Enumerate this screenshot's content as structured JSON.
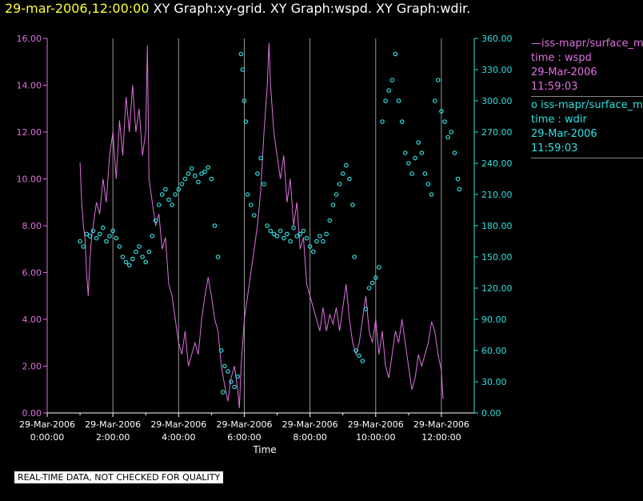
{
  "header": {
    "datetime": "29-mar-2006,12:00:00",
    "title": "XY Graph:xy-grid.  XY Graph:wspd.  XY Graph:wdir."
  },
  "legend": {
    "wspd": {
      "line1": "iss-mapr/surface_m",
      "line2": "time : wspd",
      "line3": "29-Mar-2006",
      "line4": "11:59:03",
      "color": "#e070e0"
    },
    "wdir": {
      "line1": "iss-mapr/surface_m",
      "line2": "time : wdir",
      "line3": "29-Mar-2006",
      "line4": "11:59:03",
      "color": "#30e0e0"
    }
  },
  "footer": {
    "quality_note": "REAL-TIME DATA, NOT CHECKED FOR QUALITY"
  },
  "chart_data": {
    "type": "line",
    "xlabel": "Time",
    "x_range_hours": [
      -1,
      12
    ],
    "x_ticks": [
      {
        "hour": -1,
        "date": "29-Mar-2006",
        "time": "0:00:00"
      },
      {
        "hour": 1,
        "date": "29-Mar-2006",
        "time": "2:00:00"
      },
      {
        "hour": 3,
        "date": "29-Mar-2006",
        "time": "4:00:00"
      },
      {
        "hour": 5,
        "date": "29-Mar-2006",
        "time": "6:00:00"
      },
      {
        "hour": 7,
        "date": "29-Mar-2006",
        "time": "8:00:00"
      },
      {
        "hour": 9,
        "date": "29-Mar-2006",
        "time": "10:00:00"
      },
      {
        "hour": 11,
        "date": "29-Mar-2006",
        "time": "12:00:00"
      }
    ],
    "gridlines_hours": [
      1,
      3,
      5,
      7,
      9,
      11
    ],
    "y_left": {
      "label": "wspd",
      "range": [
        0,
        16
      ],
      "color": "#e070e0",
      "ticks": [
        "0.00",
        "2.00",
        "4.00",
        "6.00",
        "8.00",
        "10.00",
        "12.00",
        "14.00",
        "16.00"
      ]
    },
    "y_right": {
      "label": "wdir",
      "range": [
        0,
        360
      ],
      "color": "#30e0e0",
      "ticks": [
        "0.00",
        "30.00",
        "60.00",
        "90.00",
        "120.00",
        "150.00",
        "180.00",
        "210.00",
        "240.00",
        "270.00",
        "300.00",
        "330.00",
        "360.00"
      ]
    },
    "series": [
      {
        "name": "wspd",
        "style": "line",
        "axis": "left",
        "points": [
          [
            0,
            10.7
          ],
          [
            0.05,
            9
          ],
          [
            0.1,
            8
          ],
          [
            0.15,
            7.5
          ],
          [
            0.2,
            6
          ],
          [
            0.25,
            5
          ],
          [
            0.3,
            6.5
          ],
          [
            0.35,
            7.5
          ],
          [
            0.4,
            8
          ],
          [
            0.5,
            9
          ],
          [
            0.6,
            8.5
          ],
          [
            0.7,
            10
          ],
          [
            0.8,
            9
          ],
          [
            0.9,
            11
          ],
          [
            1.0,
            12
          ],
          [
            1.1,
            10
          ],
          [
            1.2,
            12.5
          ],
          [
            1.3,
            11
          ],
          [
            1.4,
            13.5
          ],
          [
            1.5,
            12
          ],
          [
            1.6,
            14
          ],
          [
            1.7,
            12
          ],
          [
            1.8,
            13
          ],
          [
            1.9,
            11
          ],
          [
            2.0,
            12
          ],
          [
            2.05,
            15.7
          ],
          [
            2.1,
            10
          ],
          [
            2.2,
            9
          ],
          [
            2.3,
            8
          ],
          [
            2.4,
            8.5
          ],
          [
            2.5,
            7
          ],
          [
            2.6,
            7.5
          ],
          [
            2.7,
            5.5
          ],
          [
            2.8,
            5
          ],
          [
            2.9,
            4
          ],
          [
            3.0,
            3
          ],
          [
            3.1,
            2.5
          ],
          [
            3.2,
            3.5
          ],
          [
            3.3,
            2
          ],
          [
            3.4,
            2.5
          ],
          [
            3.5,
            3
          ],
          [
            3.6,
            2.5
          ],
          [
            3.7,
            4
          ],
          [
            3.8,
            5
          ],
          [
            3.9,
            5.8
          ],
          [
            4.0,
            5
          ],
          [
            4.1,
            4
          ],
          [
            4.2,
            3.5
          ],
          [
            4.3,
            2
          ],
          [
            4.4,
            1.2
          ],
          [
            4.5,
            0.5
          ],
          [
            4.6,
            1.5
          ],
          [
            4.7,
            2
          ],
          [
            4.8,
            1
          ],
          [
            4.85,
            0.2
          ],
          [
            4.9,
            2
          ],
          [
            5.0,
            4
          ],
          [
            5.1,
            5
          ],
          [
            5.2,
            6
          ],
          [
            5.3,
            7
          ],
          [
            5.4,
            8
          ],
          [
            5.5,
            9.5
          ],
          [
            5.6,
            12
          ],
          [
            5.7,
            14
          ],
          [
            5.75,
            15.8
          ],
          [
            5.8,
            14
          ],
          [
            5.9,
            12
          ],
          [
            6.0,
            11
          ],
          [
            6.1,
            10
          ],
          [
            6.2,
            11
          ],
          [
            6.3,
            9
          ],
          [
            6.4,
            10
          ],
          [
            6.5,
            8
          ],
          [
            6.6,
            9
          ],
          [
            6.7,
            7
          ],
          [
            6.8,
            7.5
          ],
          [
            6.9,
            5.5
          ],
          [
            7.0,
            5
          ],
          [
            7.1,
            4.5
          ],
          [
            7.2,
            4
          ],
          [
            7.3,
            3.5
          ],
          [
            7.4,
            4.5
          ],
          [
            7.5,
            3.5
          ],
          [
            7.6,
            4.2
          ],
          [
            7.7,
            3.8
          ],
          [
            7.8,
            4.5
          ],
          [
            7.9,
            3.5
          ],
          [
            8.0,
            4.5
          ],
          [
            8.1,
            5.5
          ],
          [
            8.2,
            4
          ],
          [
            8.3,
            3
          ],
          [
            8.4,
            2.5
          ],
          [
            8.5,
            3
          ],
          [
            8.6,
            4
          ],
          [
            8.7,
            5
          ],
          [
            8.8,
            3.5
          ],
          [
            8.9,
            3
          ],
          [
            9.0,
            4
          ],
          [
            9.1,
            2.5
          ],
          [
            9.2,
            3.5
          ],
          [
            9.3,
            2
          ],
          [
            9.4,
            1.5
          ],
          [
            9.5,
            2.5
          ],
          [
            9.6,
            3.5
          ],
          [
            9.7,
            3
          ],
          [
            9.8,
            4
          ],
          [
            9.9,
            3
          ],
          [
            10.0,
            2
          ],
          [
            10.1,
            1
          ],
          [
            10.2,
            1.5
          ],
          [
            10.3,
            2.5
          ],
          [
            10.4,
            2
          ],
          [
            10.5,
            2.5
          ],
          [
            10.6,
            3
          ],
          [
            10.7,
            3.9
          ],
          [
            10.8,
            3.5
          ],
          [
            10.9,
            2.5
          ],
          [
            11.0,
            1.8
          ],
          [
            11.05,
            0.6
          ]
        ]
      },
      {
        "name": "wdir",
        "style": "scatter",
        "axis": "right",
        "points": [
          [
            0,
            165
          ],
          [
            0.1,
            160
          ],
          [
            0.2,
            172
          ],
          [
            0.3,
            170
          ],
          [
            0.4,
            175
          ],
          [
            0.5,
            168
          ],
          [
            0.6,
            172
          ],
          [
            0.7,
            178
          ],
          [
            0.8,
            165
          ],
          [
            0.9,
            170
          ],
          [
            1.0,
            175
          ],
          [
            1.1,
            168
          ],
          [
            1.2,
            160
          ],
          [
            1.3,
            150
          ],
          [
            1.4,
            145
          ],
          [
            1.5,
            142
          ],
          [
            1.6,
            148
          ],
          [
            1.7,
            155
          ],
          [
            1.8,
            160
          ],
          [
            1.9,
            150
          ],
          [
            2.0,
            145
          ],
          [
            2.1,
            155
          ],
          [
            2.2,
            170
          ],
          [
            2.3,
            185
          ],
          [
            2.4,
            200
          ],
          [
            2.5,
            210
          ],
          [
            2.6,
            215
          ],
          [
            2.7,
            205
          ],
          [
            2.8,
            200
          ],
          [
            2.9,
            210
          ],
          [
            3.0,
            215
          ],
          [
            3.1,
            220
          ],
          [
            3.2,
            225
          ],
          [
            3.3,
            230
          ],
          [
            3.4,
            235
          ],
          [
            3.5,
            228
          ],
          [
            3.6,
            222
          ],
          [
            3.7,
            230
          ],
          [
            3.8,
            232
          ],
          [
            3.9,
            236
          ],
          [
            4.0,
            225
          ],
          [
            4.1,
            180
          ],
          [
            4.2,
            150
          ],
          [
            4.3,
            60
          ],
          [
            4.35,
            20
          ],
          [
            4.4,
            45
          ],
          [
            4.5,
            40
          ],
          [
            4.6,
            30
          ],
          [
            4.7,
            25
          ],
          [
            4.8,
            35
          ],
          [
            4.9,
            345
          ],
          [
            4.95,
            330
          ],
          [
            5.0,
            300
          ],
          [
            5.05,
            280
          ],
          [
            5.1,
            210
          ],
          [
            5.2,
            200
          ],
          [
            5.3,
            190
          ],
          [
            5.4,
            230
          ],
          [
            5.5,
            245
          ],
          [
            5.6,
            220
          ],
          [
            5.7,
            180
          ],
          [
            5.8,
            175
          ],
          [
            5.9,
            172
          ],
          [
            6.0,
            170
          ],
          [
            6.1,
            175
          ],
          [
            6.2,
            168
          ],
          [
            6.3,
            172
          ],
          [
            6.4,
            165
          ],
          [
            6.5,
            178
          ],
          [
            6.6,
            170
          ],
          [
            6.7,
            172
          ],
          [
            6.8,
            175
          ],
          [
            6.9,
            168
          ],
          [
            7.0,
            160
          ],
          [
            7.1,
            155
          ],
          [
            7.2,
            165
          ],
          [
            7.3,
            170
          ],
          [
            7.4,
            165
          ],
          [
            7.5,
            172
          ],
          [
            7.6,
            185
          ],
          [
            7.7,
            200
          ],
          [
            7.8,
            210
          ],
          [
            7.9,
            220
          ],
          [
            8.0,
            230
          ],
          [
            8.1,
            238
          ],
          [
            8.2,
            225
          ],
          [
            8.3,
            200
          ],
          [
            8.35,
            150
          ],
          [
            8.4,
            60
          ],
          [
            8.5,
            55
          ],
          [
            8.6,
            50
          ],
          [
            8.7,
            100
          ],
          [
            8.8,
            120
          ],
          [
            8.9,
            125
          ],
          [
            9.0,
            130
          ],
          [
            9.1,
            140
          ],
          [
            9.2,
            280
          ],
          [
            9.3,
            300
          ],
          [
            9.4,
            310
          ],
          [
            9.5,
            320
          ],
          [
            9.6,
            345
          ],
          [
            9.7,
            300
          ],
          [
            9.8,
            280
          ],
          [
            9.9,
            250
          ],
          [
            10.0,
            240
          ],
          [
            10.1,
            230
          ],
          [
            10.2,
            245
          ],
          [
            10.3,
            260
          ],
          [
            10.4,
            250
          ],
          [
            10.5,
            230
          ],
          [
            10.6,
            220
          ],
          [
            10.7,
            210
          ],
          [
            10.8,
            300
          ],
          [
            10.9,
            320
          ],
          [
            11.0,
            290
          ],
          [
            11.1,
            280
          ],
          [
            11.2,
            265
          ],
          [
            11.3,
            270
          ],
          [
            11.4,
            250
          ],
          [
            11.5,
            225
          ],
          [
            11.55,
            215
          ]
        ]
      }
    ]
  }
}
